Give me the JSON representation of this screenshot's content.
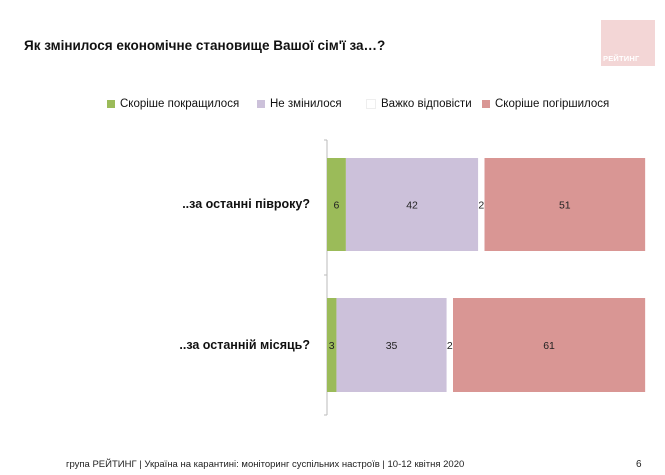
{
  "title": "Як змінилося економічне становище Вашої сім'ї за…?",
  "logo_text": "РЕЙТИНГ",
  "footer": "група РЕЙТИНГ | Україна на карантині: моніторинг суспільних настроїв  | 10-12 квітня  2020",
  "page_number": "6",
  "chart_data": {
    "type": "bar",
    "orientation": "horizontal-stacked",
    "categories": [
      "..за останні півроку?",
      "..за останній місяць?"
    ],
    "series": [
      {
        "name": "Скоріше покращилося",
        "color": "#9bbb59",
        "values": [
          6,
          3
        ]
      },
      {
        "name": "Не змінилося",
        "color": "#ccc1da",
        "values": [
          42,
          35
        ]
      },
      {
        "name": "Важко відповісти",
        "color": "#ffffff",
        "values": [
          2,
          2
        ]
      },
      {
        "name": "Скоріше погіршилося",
        "color": "#d99694",
        "values": [
          51,
          61
        ]
      }
    ],
    "legend_position": "top",
    "data_labels": true
  }
}
